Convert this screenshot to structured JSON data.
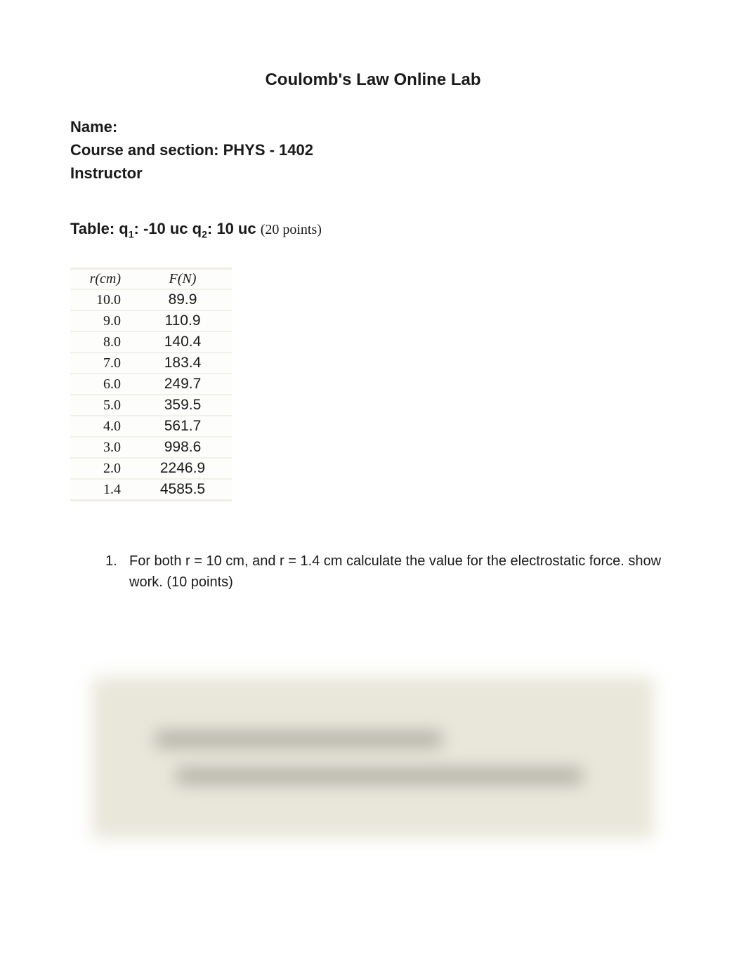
{
  "title": "Coulomb's Law Online Lab",
  "meta": {
    "name_label": "Name:",
    "course_label": "Course and section: PHYS - 1402",
    "instructor_label": "Instructor"
  },
  "table_caption": {
    "prefix": "Table: q",
    "sub1": "1",
    "mid1": ": -10 uc  q",
    "sub2": "2",
    "mid2": ": 10 uc   ",
    "points": "(20 points)"
  },
  "table": {
    "header_r": "r(cm)",
    "header_f": "F(N)",
    "rows": [
      {
        "r": "10.0",
        "f": "89.9"
      },
      {
        "r": "9.0",
        "f": "110.9"
      },
      {
        "r": "8.0",
        "f": "140.4"
      },
      {
        "r": "7.0",
        "f": "183.4"
      },
      {
        "r": "6.0",
        "f": "249.7"
      },
      {
        "r": "5.0",
        "f": "359.5"
      },
      {
        "r": "4.0",
        "f": "561.7"
      },
      {
        "r": "3.0",
        "f": "998.6"
      },
      {
        "r": "2.0",
        "f": "2246.9"
      },
      {
        "r": "1.4",
        "f": "4585.5"
      }
    ],
    "col_r_align": "right",
    "col_f_align": "center",
    "header_font_style": "italic",
    "body_font_family_r": "Georgia, serif",
    "body_font_family_f": "Segoe UI, sans-serif",
    "row_border_color": "#f2f0ea",
    "background_color": "#fdfdfc"
  },
  "question": {
    "number": "1.",
    "text": "For both r = 10 cm, and r = 1.4 cm calculate the value for the electrostatic force. show work. (10 points)"
  },
  "colors": {
    "page_bg": "#ffffff",
    "text": "#1a1a1a",
    "blur_bg": "#e9e7da"
  },
  "typography": {
    "title_fontsize": 24,
    "title_weight": 700,
    "meta_fontsize": 22,
    "meta_weight": 700,
    "caption_fontsize": 22,
    "table_fontsize": 20,
    "body_fontsize": 20
  }
}
